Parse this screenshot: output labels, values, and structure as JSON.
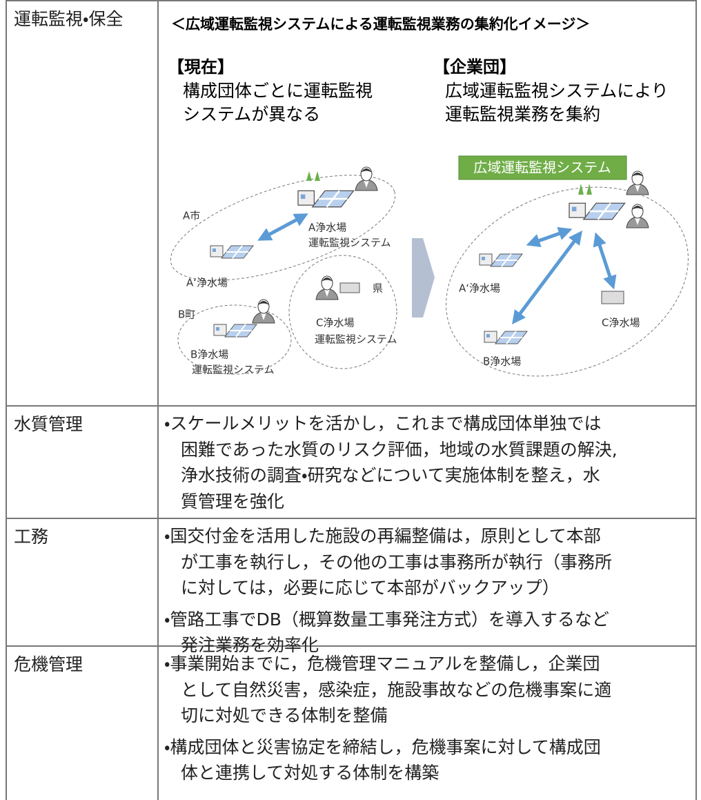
{
  "table": {
    "rows": [
      {
        "label": "運転監視・保全"
      },
      {
        "label": "水質管理",
        "items": [
          [
            "・スケールメリットを活かし，これまで構成団体単独では",
            "困難であった水質のリスク評価，地域の水質課題の解決,",
            "浄水技術の調査・研究などについて実施体制を整え，水",
            "質管理を強化"
          ]
        ]
      },
      {
        "label": "工務",
        "items": [
          [
            "・国交付金を活用した施設の再編整備は，原則として本部",
            "が工事を執行し，その他の工事は事務所が執行（事務所",
            "に対しては，必要に応じて本部がバックアップ）"
          ],
          [
            "・管路工事でDB（概算数量工事発注方式）を導入するなど",
            "発注業務を効率化"
          ]
        ]
      },
      {
        "label": "危機管理",
        "items": [
          [
            "・事業開始までに，危機管理マニュアルを整備し，企業団",
            "として自然災害，感染症，施設事故などの危機事案に適",
            "切に対処できる体制を整備"
          ],
          [
            "・構成団体と災害協定を締結し，危機事案に対して構成団",
            "体と連携して対処する体制を構築"
          ]
        ]
      }
    ]
  },
  "diagram": {
    "title": "＜広域運転監視システムによる運転監視業務の集約化イメージ＞",
    "current": {
      "heading": "【現在】",
      "lines": [
        "構成団体ごとに運転監視",
        "システムが異なる"
      ]
    },
    "integrated": {
      "heading": "【企業団】",
      "lines": [
        "広域運転監視システムにより",
        "運転監視業務を集約"
      ]
    },
    "system_box": "広域運転監視システム",
    "current_labels": [
      "A市",
      "A浄水場",
      "運転監視システム",
      "A‘浄水場",
      "B町",
      "B浄水場",
      "運転監視システム",
      "県",
      "C浄水場",
      "運転監視システム"
    ],
    "integrated_labels": [
      "A‘浄水場",
      "C浄水場",
      "B浄水場"
    ]
  }
}
